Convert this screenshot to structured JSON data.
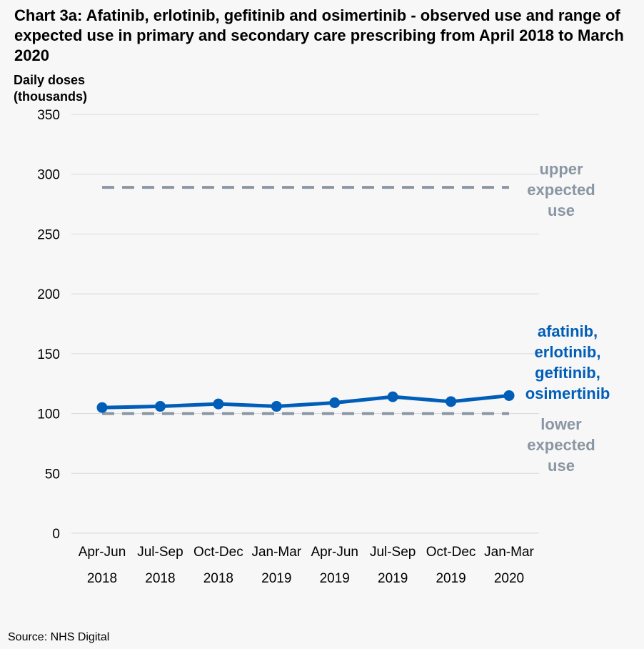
{
  "chart_data": {
    "type": "line",
    "title": "Chart 3a: Afatinib, erlotinib, gefitinib and osimertinib - observed use and range of expected use in primary and secondary care prescribing from April 2018 to March 2020",
    "ylabel": "Daily doses\n(thousands)",
    "xlabel": "",
    "ylim": [
      0,
      350
    ],
    "yticks": [
      0,
      50,
      100,
      150,
      200,
      250,
      300,
      350
    ],
    "grid": true,
    "categories": [
      {
        "period": "Apr-Jun",
        "year": "2018"
      },
      {
        "period": "Jul-Sep",
        "year": "2018"
      },
      {
        "period": "Oct-Dec",
        "year": "2018"
      },
      {
        "period": "Jan-Mar",
        "year": "2019"
      },
      {
        "period": "Apr-Jun",
        "year": "2019"
      },
      {
        "period": "Jul-Sep",
        "year": "2019"
      },
      {
        "period": "Oct-Dec",
        "year": "2019"
      },
      {
        "period": "Jan-Mar",
        "year": "2020"
      }
    ],
    "series": [
      {
        "name": "afatinib,\nerlotinib,\ngefitinib,\nosimertinib",
        "values": [
          105,
          106,
          108,
          106,
          109,
          114,
          110,
          115
        ],
        "color": "#005eb8",
        "style": "solid-markers"
      },
      {
        "name": "upper\nexpected\nuse",
        "values": [
          289,
          289,
          289,
          289,
          289,
          289,
          289,
          289
        ],
        "color": "#8a96a3",
        "style": "dashed"
      },
      {
        "name": "lower\nexpected\nuse",
        "values": [
          100,
          100,
          100,
          100,
          100,
          100,
          100,
          100
        ],
        "color": "#8a96a3",
        "style": "dashed"
      }
    ]
  },
  "source": "Source: NHS Digital",
  "colors": {
    "observed": "#005eb8",
    "expected": "#8a96a3",
    "grid": "#d9d9d9",
    "background": "#f7f7f7"
  }
}
